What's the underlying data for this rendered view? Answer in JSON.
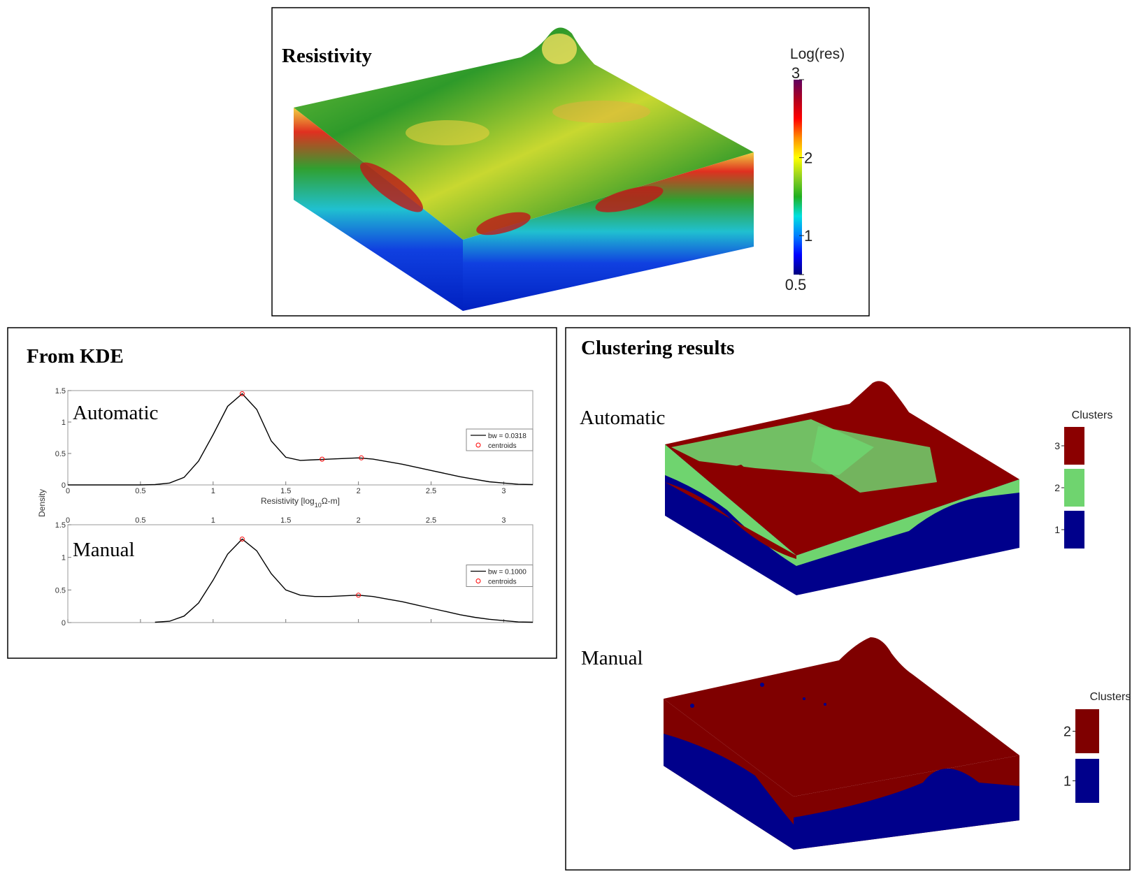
{
  "panels": {
    "resistivity": "Resistivity",
    "kde": "From KDE",
    "clustering": "Clustering results"
  },
  "chart_data": [
    {
      "type": "colorbar",
      "label": "Log(res)",
      "ylim": [
        0.5,
        3
      ],
      "yticks": [
        0.5,
        1,
        2,
        3
      ],
      "colormap": [
        "#00007f",
        "#0000ff",
        "#0080ff",
        "#00e0e0",
        "#20b020",
        "#90d020",
        "#ffff00",
        "#ff9000",
        "#ff0000",
        "#b00020",
        "#600060"
      ]
    },
    {
      "type": "line",
      "label": "Automatic",
      "xlabel": [
        "Resistivity [log",
        "10",
        "Ω-m]"
      ],
      "ylabel": "Density",
      "xlim": [
        0,
        3.2
      ],
      "ylim": [
        0,
        1.5
      ],
      "xticks": [
        0,
        0.5,
        1,
        1.5,
        2,
        2.5,
        3
      ],
      "yticks": [
        0,
        0.5,
        1,
        1.5
      ],
      "xtick_position": "bottom",
      "legend": "center right",
      "series": [
        {
          "name": "bw = 0.0318",
          "color": "#000000",
          "x": [
            0,
            0.1,
            0.2,
            0.3,
            0.4,
            0.5,
            0.6,
            0.7,
            0.8,
            0.9,
            1.0,
            1.1,
            1.2,
            1.3,
            1.4,
            1.5,
            1.6,
            1.7,
            1.8,
            1.9,
            2.0,
            2.1,
            2.2,
            2.3,
            2.4,
            2.5,
            2.6,
            2.7,
            2.8,
            2.9,
            3.0,
            3.1,
            3.2
          ],
          "values": [
            0,
            0,
            0,
            0,
            0,
            0,
            0.005,
            0.03,
            0.12,
            0.38,
            0.8,
            1.25,
            1.45,
            1.2,
            0.7,
            0.44,
            0.39,
            0.4,
            0.41,
            0.42,
            0.43,
            0.41,
            0.37,
            0.33,
            0.28,
            0.23,
            0.18,
            0.13,
            0.09,
            0.05,
            0.03,
            0.01,
            0.005
          ]
        },
        {
          "name": "centroids",
          "color": "#ff0000",
          "marker": "circle",
          "x": [
            1.2,
            1.75,
            2.02
          ],
          "values": [
            1.45,
            0.41,
            0.43
          ]
        }
      ]
    },
    {
      "type": "line",
      "label": "Manual",
      "xlim": [
        0,
        3.2
      ],
      "ylim": [
        0,
        1.5
      ],
      "xticks": [
        0,
        0.5,
        1,
        1.5,
        2,
        2.5,
        3
      ],
      "yticks": [
        0,
        0.5,
        1,
        1.5
      ],
      "xtick_position": "top",
      "legend": "center right",
      "series": [
        {
          "name": "bw = 0.1000",
          "color": "#000000",
          "x": [
            0.6,
            0.7,
            0.8,
            0.9,
            1.0,
            1.1,
            1.2,
            1.3,
            1.4,
            1.5,
            1.6,
            1.7,
            1.8,
            1.9,
            2.0,
            2.1,
            2.2,
            2.3,
            2.4,
            2.5,
            2.6,
            2.7,
            2.8,
            2.9,
            3.0,
            3.1,
            3.2
          ],
          "values": [
            0.005,
            0.02,
            0.1,
            0.3,
            0.65,
            1.05,
            1.28,
            1.1,
            0.75,
            0.5,
            0.42,
            0.4,
            0.4,
            0.41,
            0.42,
            0.4,
            0.36,
            0.32,
            0.27,
            0.22,
            0.17,
            0.12,
            0.08,
            0.05,
            0.03,
            0.01,
            0.005
          ]
        },
        {
          "name": "centroids",
          "color": "#ff0000",
          "marker": "circle",
          "x": [
            1.2,
            2.0
          ],
          "values": [
            1.28,
            0.42
          ]
        }
      ]
    },
    {
      "type": "clusters",
      "label": "Automatic",
      "title": "Clusters",
      "categories": [
        "3",
        "2",
        "1"
      ],
      "colors": [
        "#8b0000",
        "#6fd46f",
        "#00008b"
      ]
    },
    {
      "type": "clusters",
      "label": "Manual",
      "title": "Clusters",
      "categories": [
        "2",
        "1"
      ],
      "colors": [
        "#7f0000",
        "#00008b"
      ]
    }
  ]
}
